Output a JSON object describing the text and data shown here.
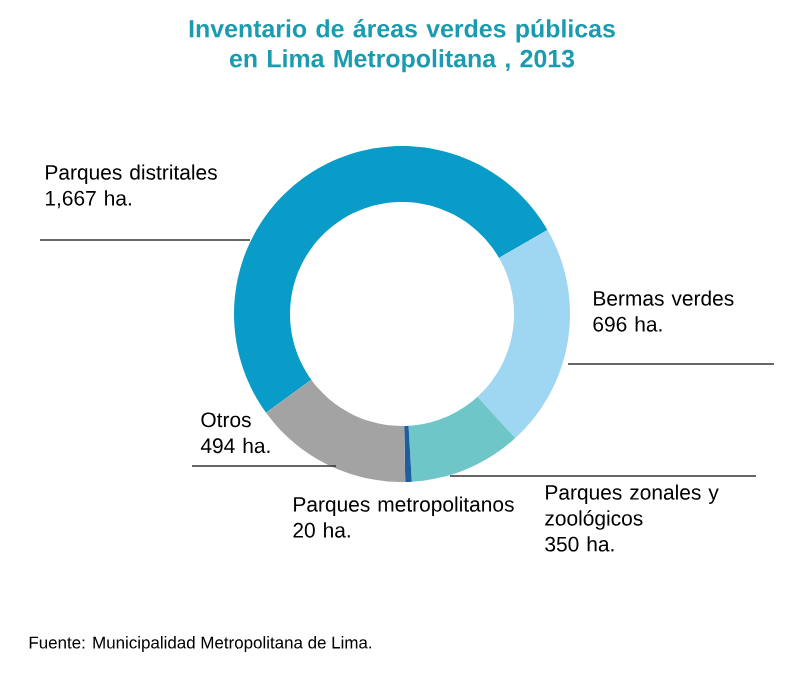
{
  "chart_data": {
    "type": "donut",
    "title": "Inventario de áreas verdes públicas en Lima Metropolitana , 2013",
    "categories": [
      "Parques distritales",
      "Bermas verdes",
      "Parques zonales y zoológicos",
      "Parques metropolitanos",
      "Otros"
    ],
    "values": [
      1667,
      696,
      350,
      20,
      494
    ],
    "colors": [
      "#0a9cc8",
      "#9fd6f2",
      "#6fc6c9",
      "#1d5e9e",
      "#a3a3a3"
    ],
    "value_labels": [
      "1,667 ha.",
      "696 ha.",
      "350 ha.",
      "20 ha.",
      "494 ha."
    ],
    "annotations": [
      "Fuente: Municipalidad Metropolitana de Lima."
    ]
  }
}
